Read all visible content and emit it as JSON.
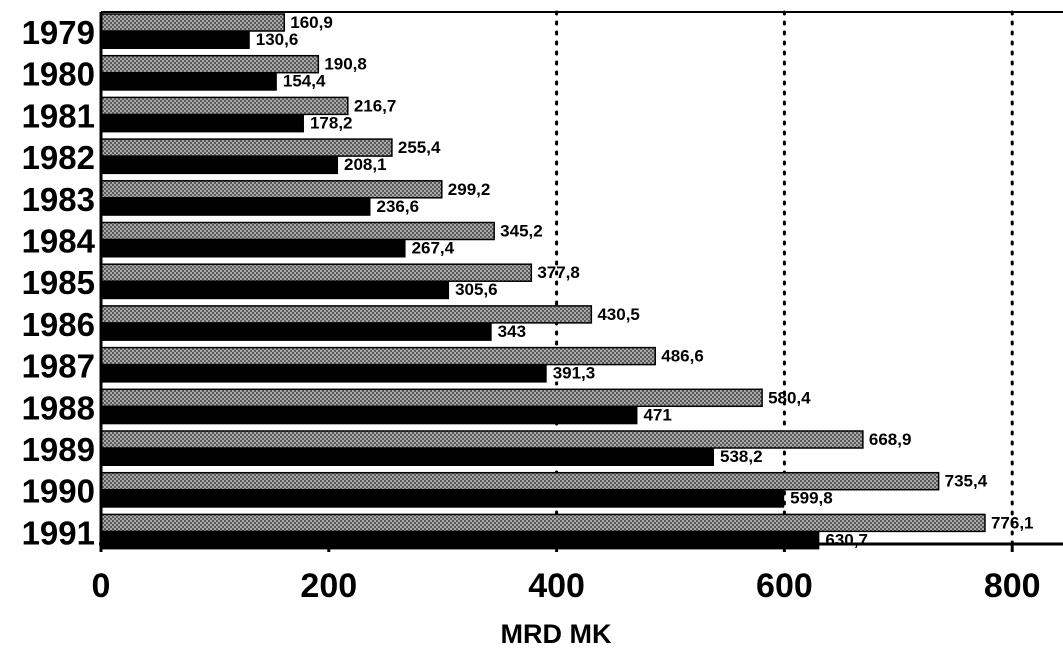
{
  "chart_data": {
    "type": "bar",
    "orientation": "horizontal",
    "categories": [
      "1979",
      "1980",
      "1981",
      "1982",
      "1983",
      "1984",
      "1985",
      "1986",
      "1987",
      "1988",
      "1989",
      "1990",
      "1991"
    ],
    "series": [
      {
        "values": [
          160.9,
          190.8,
          216.7,
          255.4,
          299.2,
          345.2,
          377.8,
          430.5,
          486.6,
          580.4,
          668.9,
          735.4,
          776.1
        ],
        "labels": [
          "160,9",
          "190,8",
          "216,7",
          "255,4",
          "299,2",
          "345,2",
          "377,8",
          "430,5",
          "486,6",
          "580,4",
          "668,9",
          "735,4",
          "776,1"
        ],
        "pattern": "hatched-gray"
      },
      {
        "values": [
          130.6,
          154.4,
          178.2,
          208.1,
          236.6,
          267.4,
          305.6,
          343,
          391.3,
          471,
          538.2,
          599.8,
          630.7
        ],
        "labels": [
          "130,6",
          "154,4",
          "178,2",
          "208,1",
          "236,6",
          "267,4",
          "305,6",
          "343",
          "391,3",
          "471",
          "538,2",
          "599,8",
          "630,7"
        ],
        "pattern": "solid-black"
      }
    ],
    "xticks": [
      "0",
      "200",
      "400",
      "600",
      "800"
    ],
    "xtick_values": [
      0,
      200,
      400,
      600,
      800
    ],
    "xlabel": "MRD MK",
    "ylabel": "",
    "title": "",
    "xlim": [
      0,
      840
    ],
    "grid": "vertical dotted at 400, 600, 800",
    "colors": {
      "hatch_fill": "#9a9a9a",
      "hatch_line": "#555555",
      "dark": "#000000"
    }
  }
}
